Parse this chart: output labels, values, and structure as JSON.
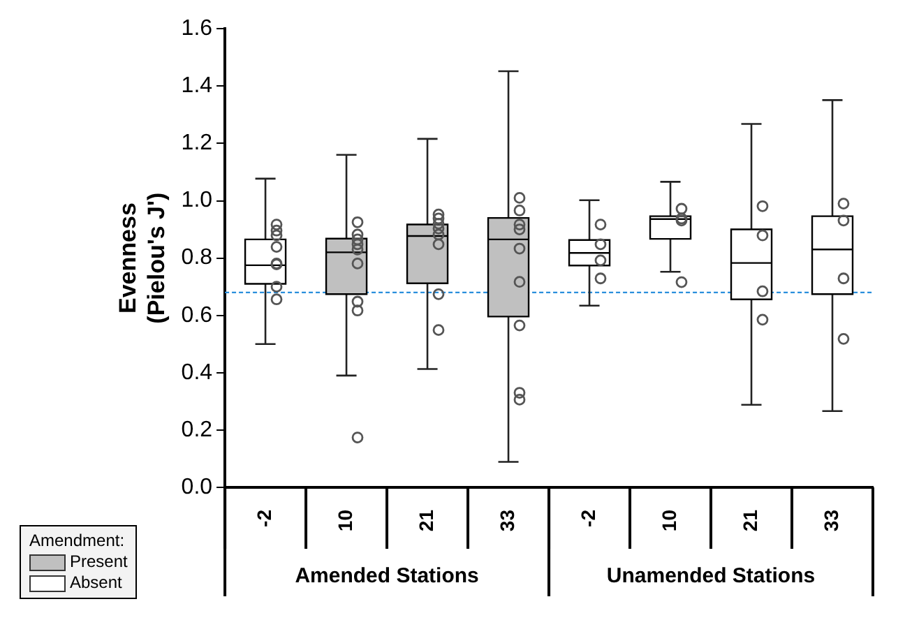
{
  "chart_data": {
    "type": "box",
    "ylabel": "Evenness\n(Pielou's J')",
    "categories": [
      "-2",
      "10",
      "21",
      "33",
      "-2",
      "10",
      "21",
      "33"
    ],
    "series": [
      {
        "name": "Present",
        "color": "#c0c0c0",
        "boxes": [
          null,
          {
            "low": 0.39,
            "q1": 0.674,
            "median": 0.82,
            "q3": 0.868,
            "high": 1.16,
            "outliers": [
              0.925,
              0.882,
              0.865,
              0.848,
              0.83,
              0.781,
              0.648,
              0.617,
              0.174
            ]
          },
          {
            "low": 0.413,
            "q1": 0.712,
            "median": 0.877,
            "q3": 0.917,
            "high": 1.216,
            "outliers": [
              0.952,
              0.938,
              0.92,
              0.903,
              0.882,
              0.848,
              0.674,
              0.549
            ]
          },
          {
            "low": 0.089,
            "q1": 0.596,
            "median": 0.865,
            "q3": 0.94,
            "high": 1.452,
            "outliers": [
              1.01,
              0.966,
              0.917,
              0.9,
              0.833,
              0.717,
              0.565,
              0.33,
              0.306
            ]
          },
          null,
          null,
          null,
          null
        ]
      },
      {
        "name": "Absent",
        "color": "#ffffff",
        "boxes": [
          {
            "low": 0.5,
            "q1": 0.71,
            "median": 0.775,
            "q3": 0.865,
            "high": 1.077,
            "outliers": [
              0.917,
              0.896,
              0.879,
              0.839,
              0.781,
              0.778,
              0.7,
              0.656
            ]
          },
          null,
          null,
          null,
          {
            "low": 0.634,
            "q1": 0.774,
            "median": 0.818,
            "q3": 0.863,
            "high": 1.002,
            "outliers": [
              0.917,
              0.848,
              0.792,
              0.729
            ]
          },
          {
            "low": 0.752,
            "q1": 0.867,
            "median": 0.936,
            "q3": 0.946,
            "high": 1.066,
            "outliers": [
              0.972,
              0.938,
              0.931,
              0.716
            ]
          },
          {
            "low": 0.288,
            "q1": 0.656,
            "median": 0.783,
            "q3": 0.9,
            "high": 1.268,
            "outliers": [
              0.981,
              0.879,
              0.684,
              0.585
            ]
          },
          {
            "low": 0.266,
            "q1": 0.674,
            "median": 0.83,
            "q3": 0.946,
            "high": 1.351,
            "outliers": [
              0.99,
              0.931,
              0.729,
              0.518
            ]
          }
        ]
      }
    ],
    "ylim": [
      0,
      1.6
    ],
    "yticks": [
      {
        "value": 0,
        "label": "0.0"
      },
      {
        "value": 0.2,
        "label": "0.2"
      },
      {
        "value": 0.4,
        "label": "0.4"
      },
      {
        "value": 0.6,
        "label": "0.6"
      },
      {
        "value": 0.8,
        "label": "0.8"
      },
      {
        "value": 1,
        "label": "1.0"
      },
      {
        "value": 1.2,
        "label": "1.2"
      },
      {
        "value": 1.4,
        "label": "1.4"
      },
      {
        "value": 1.6,
        "label": "1.6"
      }
    ],
    "ref_lines": [
      {
        "axis": "y",
        "value": 0.68,
        "color": "#2a8fdc",
        "line_style": "dashed"
      }
    ],
    "legend": "bottom left",
    "legend_title": "Amendment:",
    "grid": false,
    "annotations": [
      "Amended Stations",
      "Unamended Stations"
    ]
  }
}
